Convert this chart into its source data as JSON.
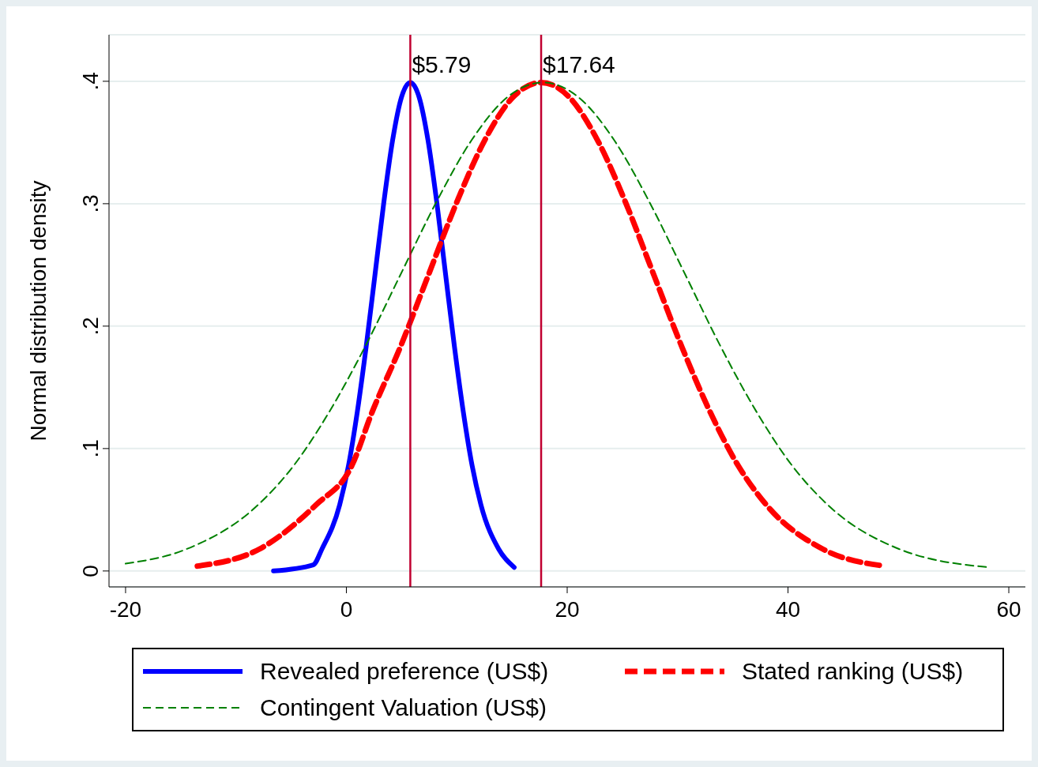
{
  "chart_data": {
    "type": "line",
    "ylabel": "Normal distribution density",
    "xlim": [
      -21.5,
      61.5
    ],
    "xticks": [
      -20,
      0,
      20,
      40,
      60
    ],
    "ylim": [
      -0.013,
      0.438
    ],
    "yticks": [
      0,
      {
        "value": 0.1,
        "label": ".1"
      },
      {
        "value": 0.2,
        "label": ".2"
      },
      {
        "value": 0.3,
        "label": ".3"
      },
      {
        "value": 0.4,
        "label": ".4"
      }
    ],
    "grid": "y",
    "legend": "bottom",
    "marker": "none",
    "series": [
      {
        "name": "Revealed preference (US$)",
        "color": "#0000ff",
        "line_style": "solid",
        "x": [
          -6.6,
          -3.0,
          -2.21,
          -0.61,
          0.19,
          0.99,
          1.79,
          2.59,
          3.39,
          4.19,
          4.99,
          5.79,
          6.59,
          7.39,
          8.19,
          8.99,
          9.79,
          10.59,
          11.39,
          12.19,
          13.79,
          15.2
        ],
        "values": [
          0.0,
          0.005,
          0.018,
          0.054,
          0.086,
          0.13,
          0.183,
          0.242,
          0.301,
          0.352,
          0.387,
          0.399,
          0.387,
          0.352,
          0.301,
          0.242,
          0.183,
          0.13,
          0.086,
          0.054,
          0.018,
          0.003
        ]
      },
      {
        "name": "Stated ranking (US$)",
        "color": "#ff0000",
        "line_style": "dashed",
        "x": [
          -13.5,
          -7.86,
          -2.76,
          0.49,
          2.34,
          4.89,
          7.44,
          9.99,
          12.54,
          15.09,
          17.64,
          20.19,
          22.74,
          25.29,
          27.84,
          30.39,
          32.94,
          35.49,
          38.04,
          43.14,
          48.8
        ],
        "values": [
          0.004,
          0.018,
          0.054,
          0.086,
          0.13,
          0.183,
          0.242,
          0.301,
          0.352,
          0.387,
          0.399,
          0.387,
          0.352,
          0.301,
          0.242,
          0.183,
          0.13,
          0.086,
          0.054,
          0.018,
          0.004
        ]
      },
      {
        "name": "Contingent Valuation (US$)",
        "color": "#008000",
        "line_style": "dashed",
        "x": [
          -20,
          -14.45,
          -8.0,
          -4.78,
          -1.55,
          1.68,
          4.9,
          8.13,
          11.35,
          14.58,
          17.8,
          21.02,
          24.25,
          27.47,
          30.7,
          33.92,
          37.15,
          40.38,
          43.6,
          50.05,
          58.2
        ],
        "values": [
          0.006,
          0.018,
          0.054,
          0.086,
          0.13,
          0.183,
          0.242,
          0.301,
          0.352,
          0.387,
          0.399,
          0.387,
          0.352,
          0.301,
          0.242,
          0.183,
          0.13,
          0.086,
          0.054,
          0.018,
          0.003
        ]
      }
    ],
    "ref_lines": [
      {
        "axis": "x",
        "value": 5.79,
        "label": "$5.79",
        "color": "#c00030"
      },
      {
        "axis": "x",
        "value": 17.64,
        "label": "$17.64",
        "color": "#c00030"
      }
    ]
  }
}
